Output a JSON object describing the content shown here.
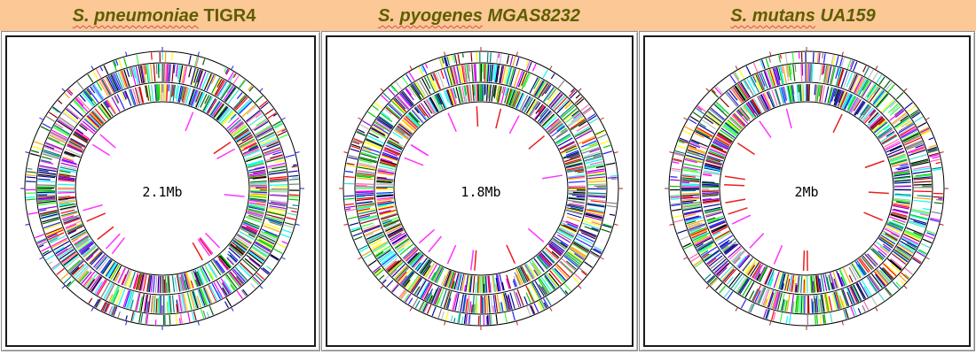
{
  "genomes": [
    {
      "species": "S. pneumoniae",
      "strain": "TIGR4",
      "strain_italic": false,
      "size_label": "2.1Mb",
      "tick_color": "#1e1ee6",
      "seed": 11
    },
    {
      "species": "S. pyogenes",
      "strain": "MGAS8232",
      "strain_italic": true,
      "size_label": "1.8Mb",
      "tick_color": "#c81e1e",
      "seed": 47
    },
    {
      "species": "S. mutans",
      "strain": "UA159",
      "strain_italic": true,
      "size_label": "2Mb",
      "tick_color": "#a02828",
      "seed": 83
    }
  ],
  "colors": {
    "header_bg": "#fbc896",
    "title_text": "#5e5e00",
    "rna_red": "#e82020",
    "rna_magenta": "#ff33ff",
    "gene_palette": [
      "#000000",
      "#0a0a9a",
      "#1f1fff",
      "#00cc00",
      "#33ff33",
      "#00ffff",
      "#008080",
      "#ff0000",
      "#8b0000",
      "#ff00ff",
      "#9400d3",
      "#ffa500",
      "#ffff00",
      "#ffffff",
      "#7f7f7f",
      "#006400",
      "#00008b",
      "#ff69b4",
      "#40e0d0",
      "#c0c0c0"
    ]
  }
}
